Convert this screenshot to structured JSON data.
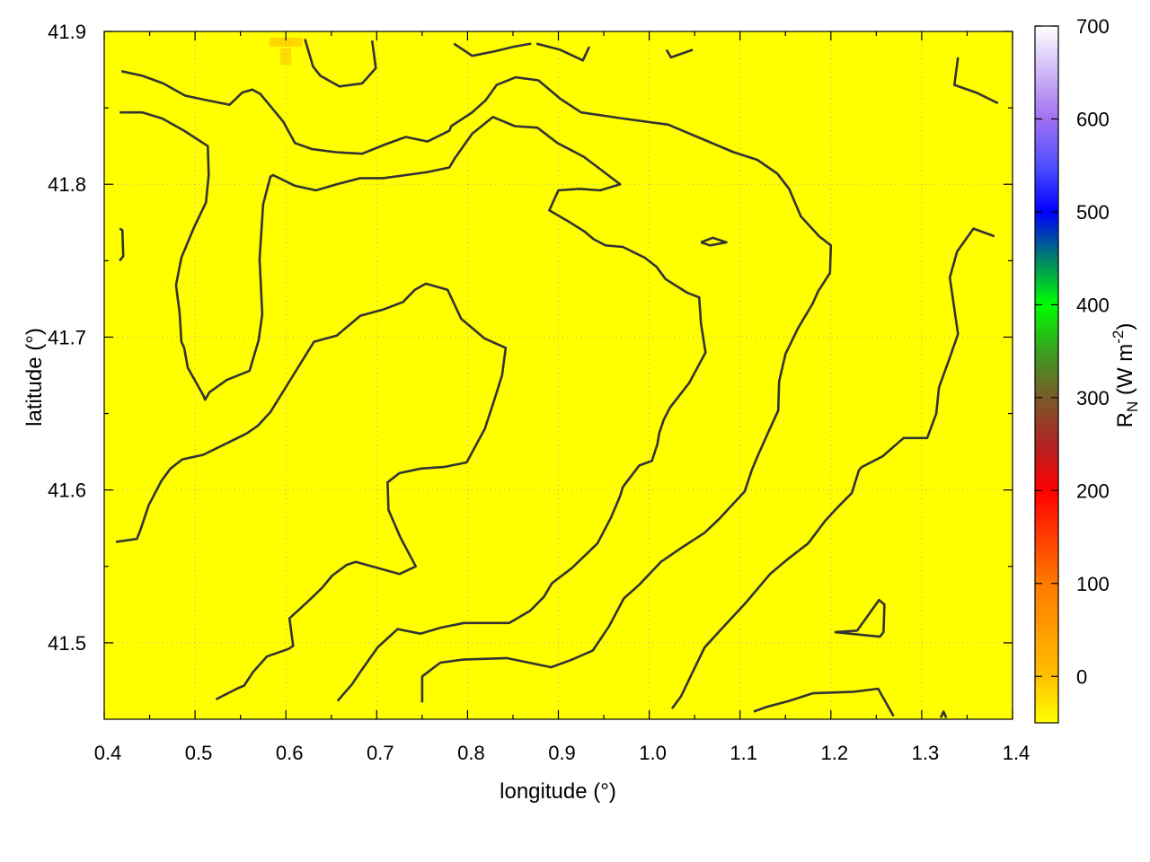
{
  "chart_data": {
    "type": "heatmap",
    "title": "",
    "xlabel": "longitude (°)",
    "ylabel": "latitude (°)",
    "xlim": [
      0.4,
      1.4
    ],
    "ylim": [
      41.45,
      41.9
    ],
    "x_ticks": [
      "0.4",
      "0.5",
      "0.6",
      "0.7",
      "0.8",
      "0.9",
      "1.0",
      "1.1",
      "1.2",
      "1.3",
      "1.4"
    ],
    "y_ticks": [
      "41.5",
      "41.6",
      "41.7",
      "41.8",
      "41.9"
    ],
    "grid": true,
    "colorbar": {
      "label": {
        "base": "R",
        "sub": "N",
        "unit": " (W m",
        "sup": "-2",
        "close": ")"
      },
      "range": [
        -50,
        700
      ],
      "ticks": [
        "0",
        "100",
        "200",
        "300",
        "400",
        "500",
        "600",
        "700"
      ],
      "colormap": [
        {
          "value": -50,
          "color": "#ffff00"
        },
        {
          "value": 0,
          "color": "#ffc000"
        },
        {
          "value": 100,
          "color": "#ff7a00"
        },
        {
          "value": 200,
          "color": "#ff0000"
        },
        {
          "value": 250,
          "color": "#b02424"
        },
        {
          "value": 300,
          "color": "#7a5a2a"
        },
        {
          "value": 350,
          "color": "#3aa020"
        },
        {
          "value": 400,
          "color": "#00ff00"
        },
        {
          "value": 450,
          "color": "#00806a"
        },
        {
          "value": 500,
          "color": "#0000ff"
        },
        {
          "value": 550,
          "color": "#5050ff"
        },
        {
          "value": 600,
          "color": "#a070f0"
        },
        {
          "value": 700,
          "color": "#ffffff"
        }
      ]
    },
    "field": {
      "background_value": -50,
      "background_color": "#ffff00",
      "cells": [
        {
          "lon": 0.6,
          "lat": 41.893,
          "value": -5,
          "color": "#ffd200"
        },
        {
          "lon": 0.6,
          "lat": 41.886,
          "value": -10,
          "color": "#ffd800"
        },
        {
          "lon": 0.6,
          "lat": 41.881,
          "value": -15,
          "color": "#ffdc00"
        },
        {
          "lon": 0.588,
          "lat": 41.893,
          "value": -10,
          "color": "#ffd800"
        },
        {
          "lon": 0.612,
          "lat": 41.893,
          "value": -10,
          "color": "#ffd800"
        }
      ]
    },
    "contour_color": "#333333",
    "contours": [
      [
        [
          0.419,
          41.874
        ],
        [
          0.442,
          41.871
        ],
        [
          0.465,
          41.866
        ],
        [
          0.489,
          41.858
        ],
        [
          0.513,
          41.855
        ],
        [
          0.538,
          41.852
        ],
        [
          0.552,
          41.86
        ],
        [
          0.563,
          41.862
        ],
        [
          0.572,
          41.859
        ],
        [
          0.597,
          41.841
        ],
        [
          0.61,
          41.827
        ],
        [
          0.629,
          41.823
        ],
        [
          0.655,
          41.821
        ],
        [
          0.684,
          41.82
        ],
        [
          0.709,
          41.826
        ],
        [
          0.732,
          41.831
        ],
        [
          0.756,
          41.828
        ],
        [
          0.78,
          41.835
        ],
        [
          0.782,
          41.838
        ],
        [
          0.805,
          41.847
        ],
        [
          0.82,
          41.855
        ],
        [
          0.832,
          41.865
        ],
        [
          0.853,
          41.87
        ],
        [
          0.878,
          41.868
        ],
        [
          0.902,
          41.856
        ],
        [
          0.925,
          41.847
        ],
        [
          0.971,
          41.843
        ],
        [
          1.021,
          41.839
        ],
        [
          1.053,
          41.831
        ],
        [
          1.093,
          41.821
        ],
        [
          1.119,
          41.816
        ],
        [
          1.141,
          41.807
        ],
        [
          1.154,
          41.797
        ],
        [
          1.167,
          41.779
        ],
        [
          1.187,
          41.766
        ],
        [
          1.2,
          41.76
        ],
        [
          1.199,
          41.742
        ],
        [
          1.186,
          41.73
        ],
        [
          1.18,
          41.722
        ],
        [
          1.164,
          41.706
        ],
        [
          1.15,
          41.689
        ],
        [
          1.143,
          41.671
        ],
        [
          1.142,
          41.652
        ],
        [
          1.132,
          41.639
        ],
        [
          1.12,
          41.623
        ],
        [
          1.113,
          41.613
        ],
        [
          1.105,
          41.599
        ],
        [
          1.077,
          41.581
        ],
        [
          1.061,
          41.572
        ],
        [
          1.035,
          41.562
        ],
        [
          1.013,
          41.553
        ],
        [
          0.989,
          41.538
        ],
        [
          0.972,
          41.529
        ],
        [
          0.956,
          41.511
        ],
        [
          0.938,
          41.495
        ],
        [
          0.915,
          41.489
        ],
        [
          0.892,
          41.484
        ],
        [
          0.843,
          41.49
        ],
        [
          0.795,
          41.489
        ],
        [
          0.77,
          41.487
        ],
        [
          0.75,
          41.478
        ],
        [
          0.75,
          41.461
        ]
      ],
      [
        [
          0.417,
          41.847
        ],
        [
          0.442,
          41.847
        ],
        [
          0.464,
          41.843
        ],
        [
          0.488,
          41.835
        ],
        [
          0.514,
          41.825
        ],
        [
          0.515,
          41.806
        ],
        [
          0.512,
          41.788
        ],
        [
          0.499,
          41.772
        ],
        [
          0.485,
          41.752
        ],
        [
          0.479,
          41.734
        ],
        [
          0.483,
          41.716
        ],
        [
          0.485,
          41.697
        ],
        [
          0.488,
          41.693
        ],
        [
          0.492,
          41.68
        ],
        [
          0.509,
          41.662
        ],
        [
          0.511,
          41.659
        ],
        [
          0.516,
          41.664
        ],
        [
          0.535,
          41.672
        ],
        [
          0.56,
          41.678
        ],
        [
          0.57,
          41.698
        ],
        [
          0.574,
          41.715
        ],
        [
          0.571,
          41.751
        ],
        [
          0.575,
          41.787
        ],
        [
          0.583,
          41.805
        ],
        [
          0.586,
          41.806
        ],
        [
          0.61,
          41.799
        ],
        [
          0.633,
          41.796
        ],
        [
          0.656,
          41.8
        ],
        [
          0.682,
          41.804
        ],
        [
          0.707,
          41.804
        ],
        [
          0.732,
          41.806
        ],
        [
          0.756,
          41.808
        ],
        [
          0.78,
          41.811
        ],
        [
          0.786,
          41.817
        ],
        [
          0.805,
          41.833
        ],
        [
          0.828,
          41.844
        ],
        [
          0.852,
          41.838
        ],
        [
          0.877,
          41.837
        ],
        [
          0.899,
          41.827
        ],
        [
          0.928,
          41.818
        ],
        [
          0.948,
          41.809
        ],
        [
          0.968,
          41.8
        ],
        [
          0.946,
          41.796
        ],
        [
          0.923,
          41.797
        ],
        [
          0.9,
          41.796
        ],
        [
          0.89,
          41.783
        ],
        [
          0.913,
          41.775
        ],
        [
          0.929,
          41.769
        ],
        [
          0.939,
          41.764
        ],
        [
          0.952,
          41.76
        ],
        [
          0.971,
          41.759
        ],
        [
          0.995,
          41.752
        ],
        [
          1.008,
          41.746
        ],
        [
          1.018,
          41.738
        ],
        [
          1.042,
          41.729
        ],
        [
          1.055,
          41.726
        ],
        [
          1.057,
          41.709
        ],
        [
          1.062,
          41.69
        ],
        [
          1.044,
          41.67
        ],
        [
          1.023,
          41.654
        ],
        [
          1.016,
          41.646
        ],
        [
          1.011,
          41.637
        ],
        [
          1.009,
          41.63
        ],
        [
          1.003,
          41.619
        ],
        [
          0.989,
          41.616
        ],
        [
          0.971,
          41.602
        ],
        [
          0.968,
          41.596
        ],
        [
          0.958,
          41.582
        ],
        [
          0.943,
          41.565
        ],
        [
          0.915,
          41.549
        ],
        [
          0.893,
          41.539
        ],
        [
          0.884,
          41.53
        ],
        [
          0.869,
          41.521
        ],
        [
          0.846,
          41.513
        ],
        [
          0.796,
          41.513
        ],
        [
          0.771,
          41.51
        ],
        [
          0.748,
          41.506
        ],
        [
          0.723,
          41.509
        ],
        [
          0.701,
          41.497
        ],
        [
          0.682,
          41.481
        ],
        [
          0.673,
          41.473
        ],
        [
          0.657,
          41.462
        ]
      ],
      [
        [
          0.413,
          41.566
        ],
        [
          0.436,
          41.568
        ],
        [
          0.44,
          41.574
        ],
        [
          0.449,
          41.59
        ],
        [
          0.463,
          41.606
        ],
        [
          0.473,
          41.614
        ],
        [
          0.486,
          41.62
        ],
        [
          0.509,
          41.623
        ],
        [
          0.533,
          41.63
        ],
        [
          0.557,
          41.637
        ],
        [
          0.569,
          41.642
        ],
        [
          0.583,
          41.651
        ],
        [
          0.608,
          41.675
        ],
        [
          0.631,
          41.697
        ],
        [
          0.656,
          41.701
        ],
        [
          0.682,
          41.714
        ],
        [
          0.707,
          41.718
        ],
        [
          0.729,
          41.723
        ],
        [
          0.742,
          41.731
        ],
        [
          0.754,
          41.735
        ],
        [
          0.778,
          41.731
        ],
        [
          0.793,
          41.712
        ],
        [
          0.819,
          41.699
        ],
        [
          0.842,
          41.693
        ],
        [
          0.838,
          41.675
        ],
        [
          0.829,
          41.658
        ],
        [
          0.819,
          41.64
        ],
        [
          0.799,
          41.618
        ],
        [
          0.774,
          41.615
        ],
        [
          0.749,
          41.614
        ],
        [
          0.725,
          41.611
        ],
        [
          0.712,
          41.605
        ],
        [
          0.713,
          41.587
        ],
        [
          0.726,
          41.569
        ],
        [
          0.743,
          41.55
        ],
        [
          0.725,
          41.545
        ],
        [
          0.701,
          41.549
        ],
        [
          0.677,
          41.553
        ],
        [
          0.667,
          41.551
        ],
        [
          0.651,
          41.544
        ],
        [
          0.64,
          41.536
        ],
        [
          0.626,
          41.528
        ],
        [
          0.604,
          41.516
        ],
        [
          0.608,
          41.498
        ],
        [
          0.603,
          41.496
        ],
        [
          0.579,
          41.491
        ],
        [
          0.564,
          41.481
        ],
        [
          0.554,
          41.472
        ],
        [
          0.546,
          41.47
        ],
        [
          0.523,
          41.463
        ]
      ],
      [
        [
          1.38,
          41.766
        ],
        [
          1.357,
          41.771
        ],
        [
          1.339,
          41.756
        ],
        [
          1.331,
          41.739
        ],
        [
          1.34,
          41.702
        ],
        [
          1.33,
          41.685
        ],
        [
          1.319,
          41.667
        ],
        [
          1.316,
          41.65
        ],
        [
          1.306,
          41.634
        ],
        [
          1.28,
          41.634
        ],
        [
          1.257,
          41.622
        ],
        [
          1.234,
          41.615
        ],
        [
          1.231,
          41.613
        ],
        [
          1.223,
          41.598
        ],
        [
          1.208,
          41.589
        ],
        [
          1.194,
          41.58
        ],
        [
          1.175,
          41.565
        ],
        [
          1.153,
          41.555
        ],
        [
          1.133,
          41.545
        ],
        [
          1.106,
          41.526
        ],
        [
          1.081,
          41.51
        ],
        [
          1.061,
          41.497
        ],
        [
          1.048,
          41.481
        ],
        [
          1.035,
          41.465
        ],
        [
          1.025,
          41.457
        ]
      ],
      [
        [
          1.115,
          41.455
        ],
        [
          1.129,
          41.458
        ],
        [
          1.154,
          41.462
        ],
        [
          1.18,
          41.467
        ],
        [
          1.225,
          41.468
        ],
        [
          1.252,
          41.47
        ],
        [
          1.269,
          41.452
        ]
      ],
      [
        [
          1.204,
          41.507
        ],
        [
          1.229,
          41.508
        ],
        [
          1.253,
          41.528
        ],
        [
          1.259,
          41.525
        ],
        [
          1.258,
          41.507
        ],
        [
          1.254,
          41.504
        ],
        [
          1.204,
          41.507
        ]
      ],
      [
        [
          1.34,
          41.883
        ],
        [
          1.336,
          41.865
        ],
        [
          1.36,
          41.86
        ],
        [
          1.384,
          41.853
        ]
      ],
      [
        [
          1.057,
          41.762
        ],
        [
          1.07,
          41.765
        ],
        [
          1.085,
          41.762
        ],
        [
          1.067,
          41.76
        ],
        [
          1.057,
          41.762
        ]
      ],
      [
        [
          0.417,
          41.771
        ],
        [
          0.42,
          41.77
        ],
        [
          0.421,
          41.753
        ],
        [
          0.417,
          41.75
        ]
      ],
      [
        [
          0.621,
          41.895
        ],
        [
          0.63,
          41.877
        ],
        [
          0.638,
          41.871
        ],
        [
          0.659,
          41.864
        ],
        [
          0.684,
          41.866
        ],
        [
          0.699,
          41.876
        ],
        [
          0.695,
          41.894
        ]
      ],
      [
        [
          0.785,
          41.892
        ],
        [
          0.805,
          41.884
        ],
        [
          0.83,
          41.887
        ],
        [
          0.851,
          41.89
        ],
        [
          0.87,
          41.892
        ]
      ],
      [
        [
          0.876,
          41.892
        ],
        [
          0.902,
          41.888
        ],
        [
          0.927,
          41.881
        ],
        [
          0.934,
          41.89
        ]
      ],
      [
        [
          1.019,
          41.888
        ],
        [
          1.024,
          41.883
        ],
        [
          1.048,
          41.888
        ]
      ],
      [
        [
          1.321,
          41.451
        ],
        [
          1.324,
          41.455
        ],
        [
          1.327,
          41.451
        ]
      ]
    ]
  }
}
